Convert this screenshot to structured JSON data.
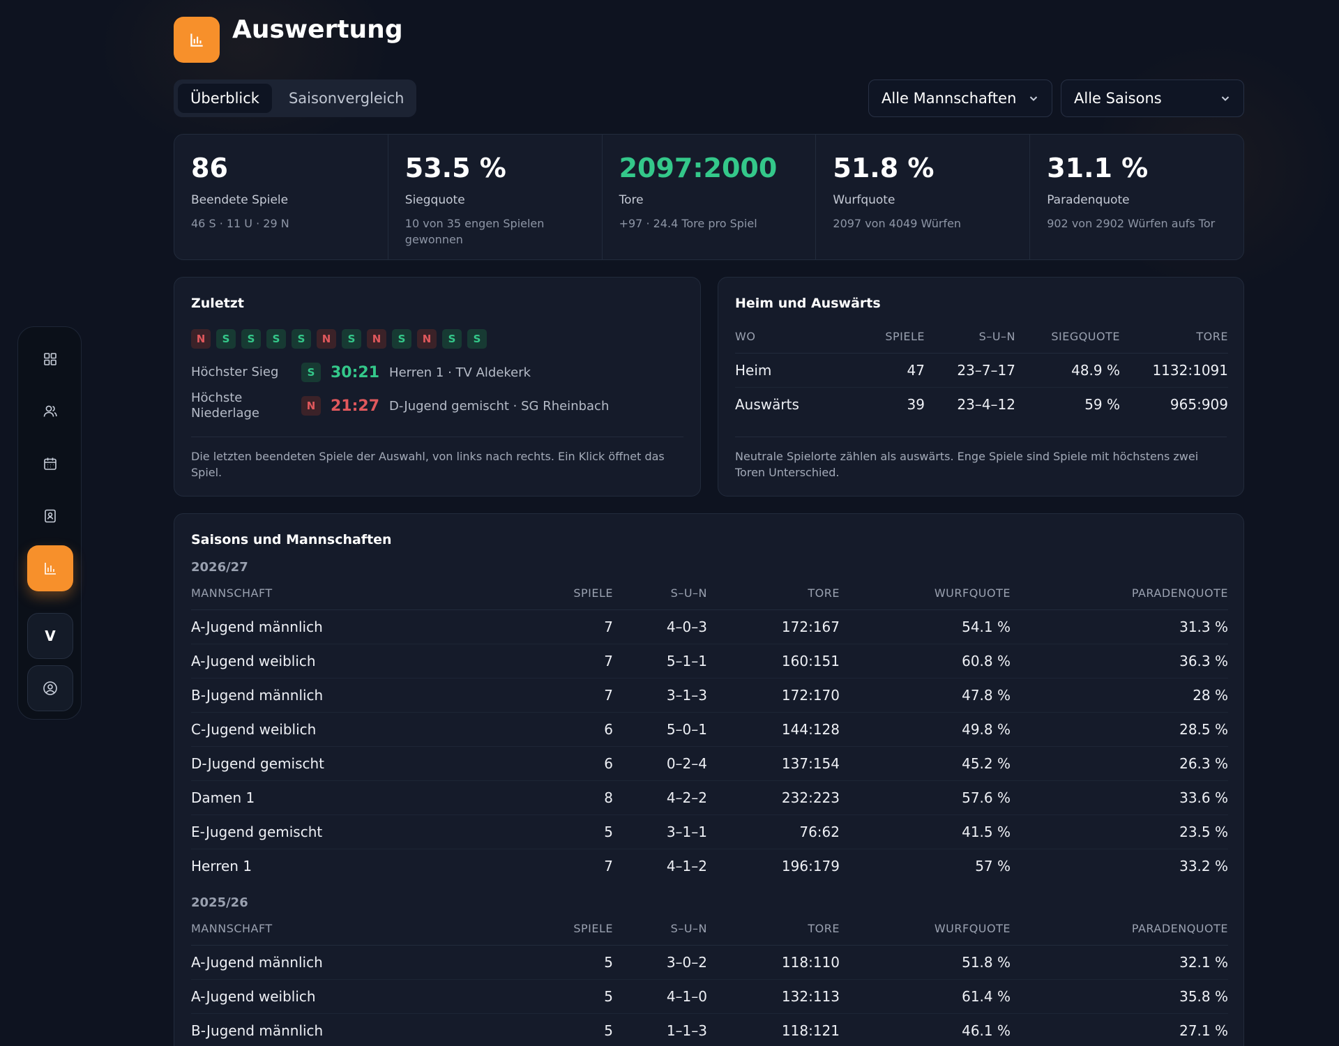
{
  "header": {
    "title": "Auswertung",
    "tabs": [
      {
        "label": "Überblick",
        "active": true
      },
      {
        "label": "Saisonvergleich",
        "active": false
      }
    ],
    "team_filter": "Alle Mannschaften",
    "season_filter": "Alle Saisons"
  },
  "sidebar": {
    "items": [
      {
        "icon": "grid-icon"
      },
      {
        "icon": "users-icon"
      },
      {
        "icon": "calendar-icon"
      },
      {
        "icon": "contact-book-icon"
      },
      {
        "icon": "bar-chart-icon",
        "active": true
      }
    ],
    "club_initial": "V",
    "profile_icon": "user-circle-icon"
  },
  "colors": {
    "accent": "#f7902b",
    "win": "#34c88a",
    "loss": "#e0585c",
    "background": "#0e1320",
    "card": "#151b2a"
  },
  "stats": [
    {
      "value": "86",
      "label": "Beendete Spiele",
      "sub": "46 S · 11 U · 29 N",
      "highlight": false
    },
    {
      "value": "53.5 %",
      "label": "Siegquote",
      "sub": "10 von 35 engen Spielen gewonnen",
      "highlight": false
    },
    {
      "value": "2097:2000",
      "label": "Tore",
      "sub": "+97 · 24.4 Tore pro Spiel",
      "highlight": true
    },
    {
      "value": "51.8 %",
      "label": "Wurfquote",
      "sub": "2097 von 4049 Würfen",
      "highlight": false
    },
    {
      "value": "31.1 %",
      "label": "Paradenquote",
      "sub": "902 von 2902 Würfen aufs Tor",
      "highlight": false
    }
  ],
  "recent": {
    "title": "Zuletzt",
    "form": [
      "N",
      "S",
      "S",
      "S",
      "S",
      "N",
      "S",
      "N",
      "S",
      "N",
      "S",
      "S"
    ],
    "highest_win": {
      "label": "Höchster Sieg",
      "badge": "S",
      "score": "30:21",
      "desc": "Herren 1 · TV Aldekerk"
    },
    "highest_loss": {
      "label": "Höchste Niederlage",
      "badge": "N",
      "score": "21:27",
      "desc": "D-Jugend gemischt · SG Rheinbach"
    },
    "footnote": "Die letzten beendeten Spiele der Auswahl, von links nach rechts. Ein Klick öffnet das Spiel."
  },
  "home_away": {
    "title": "Heim und Auswärts",
    "columns": [
      "WO",
      "SPIELE",
      "S–U–N",
      "SIEGQUOTE",
      "TORE"
    ],
    "rows": [
      [
        "Heim",
        "47",
        "23–7–17",
        "48.9 %",
        "1132:1091"
      ],
      [
        "Auswärts",
        "39",
        "23–4–12",
        "59 %",
        "965:909"
      ]
    ],
    "footnote": "Neutrale Spielorte zählen als auswärts. Enge Spiele sind Spiele mit höchstens zwei Toren Unterschied."
  },
  "seasons": {
    "title": "Saisons und Mannschaften",
    "columns": [
      "MANNSCHAFT",
      "SPIELE",
      "S–U–N",
      "TORE",
      "WURFQUOTE",
      "PARADENQUOTE"
    ],
    "groups": [
      {
        "season": "2026/27",
        "rows": [
          [
            "A-Jugend männlich",
            "7",
            "4–0–3",
            "172:167",
            "54.1 %",
            "31.3 %"
          ],
          [
            "A-Jugend weiblich",
            "7",
            "5–1–1",
            "160:151",
            "60.8 %",
            "36.3 %"
          ],
          [
            "B-Jugend männlich",
            "7",
            "3–1–3",
            "172:170",
            "47.8 %",
            "28 %"
          ],
          [
            "C-Jugend weiblich",
            "6",
            "5–0–1",
            "144:128",
            "49.8 %",
            "28.5 %"
          ],
          [
            "D-Jugend gemischt",
            "6",
            "0–2–4",
            "137:154",
            "45.2 %",
            "26.3 %"
          ],
          [
            "Damen 1",
            "8",
            "4–2–2",
            "232:223",
            "57.6 %",
            "33.6 %"
          ],
          [
            "E-Jugend gemischt",
            "5",
            "3–1–1",
            "76:62",
            "41.5 %",
            "23.5 %"
          ],
          [
            "Herren 1",
            "7",
            "4–1–2",
            "196:179",
            "57 %",
            "33.2 %"
          ]
        ]
      },
      {
        "season": "2025/26",
        "rows": [
          [
            "A-Jugend männlich",
            "5",
            "3–0–2",
            "118:110",
            "51.8 %",
            "32.1 %"
          ],
          [
            "A-Jugend weiblich",
            "5",
            "4–1–0",
            "132:113",
            "61.4 %",
            "35.8 %"
          ],
          [
            "B-Jugend männlich",
            "5",
            "1–1–3",
            "118:121",
            "46.1 %",
            "27.1 %"
          ]
        ]
      }
    ]
  }
}
